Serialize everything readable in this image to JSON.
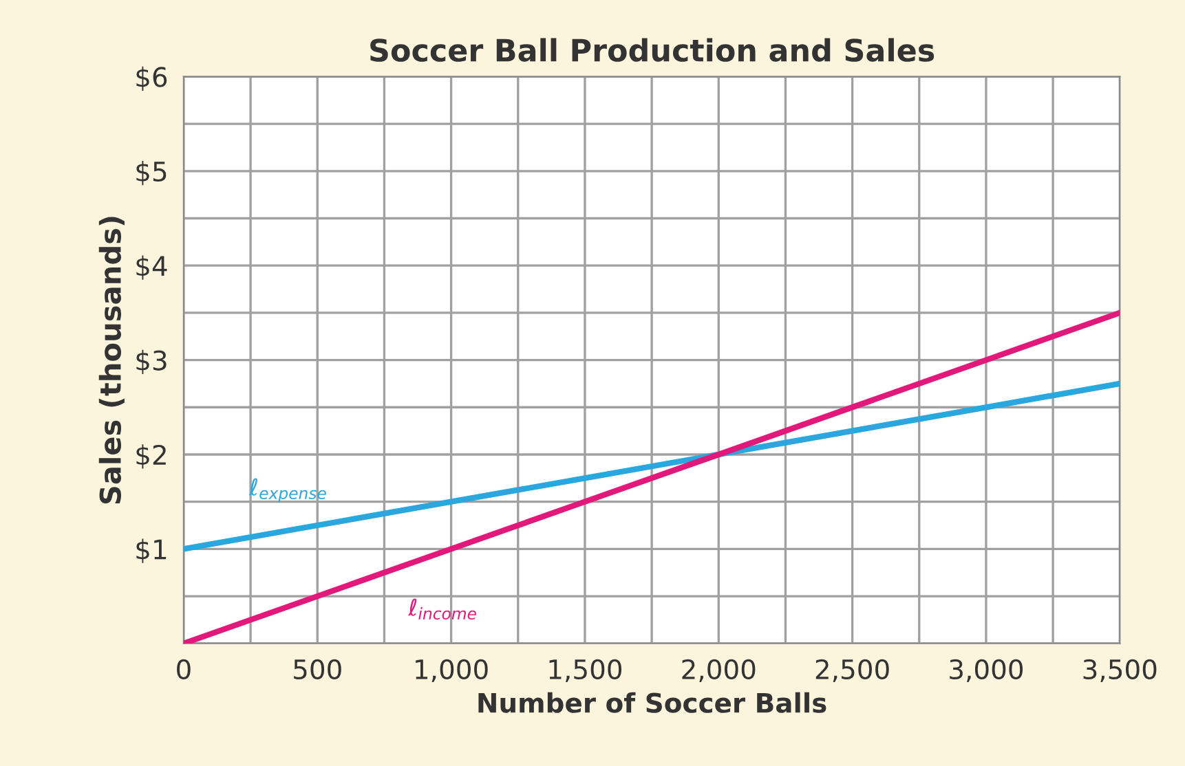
{
  "chart_data": {
    "type": "line",
    "title": "Soccer Ball Production and Sales",
    "xlabel": "Number of Soccer Balls",
    "ylabel": "Sales (thousands)",
    "series": [
      {
        "x": [
          0,
          500,
          1000,
          1500,
          2000,
          2500,
          3000,
          3500
        ],
        "values": [
          1,
          1.25,
          1.5,
          1.75,
          2,
          2.25,
          2.5,
          2.75
        ],
        "color": "#2aa7df"
      },
      {
        "x": [
          0,
          500,
          1000,
          1500,
          2000,
          2500,
          3000,
          3500
        ],
        "values": [
          0,
          0.5,
          1,
          1.5,
          2,
          2.5,
          3,
          3.5
        ],
        "color": "#e2187b"
      }
    ],
    "xlim": [
      0,
      3500
    ],
    "ylim": [
      0,
      6
    ],
    "xticks": [
      0,
      {
        "value": 250,
        "label": null
      },
      {
        "value": 500,
        "label": "500"
      },
      {
        "value": 750,
        "label": null
      },
      {
        "value": 1000,
        "label": "1,000"
      },
      {
        "value": 1250,
        "label": null
      },
      {
        "value": 1500,
        "label": "1,500"
      },
      {
        "value": 1750,
        "label": null
      },
      {
        "value": 2000,
        "label": "2,000"
      },
      {
        "value": 2250,
        "label": null
      },
      {
        "value": 2500,
        "label": "2,500"
      },
      {
        "value": 2750,
        "label": null
      },
      {
        "value": 3000,
        "label": "3,000"
      },
      {
        "value": 3250,
        "label": null
      },
      {
        "value": 3500,
        "label": "3,500"
      }
    ],
    "yticks": [
      {
        "value": 0,
        "label": null
      },
      {
        "value": 0.5,
        "label": null
      },
      {
        "value": 1,
        "label": "$1"
      },
      {
        "value": 1.5,
        "label": null
      },
      {
        "value": 2,
        "label": "$2"
      },
      {
        "value": 2.5,
        "label": null
      },
      {
        "value": 3,
        "label": "$3"
      },
      {
        "value": 3.5,
        "label": null
      },
      {
        "value": 4,
        "label": "$4"
      },
      {
        "value": 4.5,
        "label": null
      },
      {
        "value": 5,
        "label": "$5"
      },
      {
        "value": 5.5,
        "label": null
      },
      {
        "value": 6,
        "label": "$6"
      }
    ],
    "grid": true,
    "legend": false,
    "marker": "none",
    "line_style": "solid",
    "annotations": [
      "ℓ$_{expense}$",
      "ℓ$_{income}$"
    ]
  }
}
